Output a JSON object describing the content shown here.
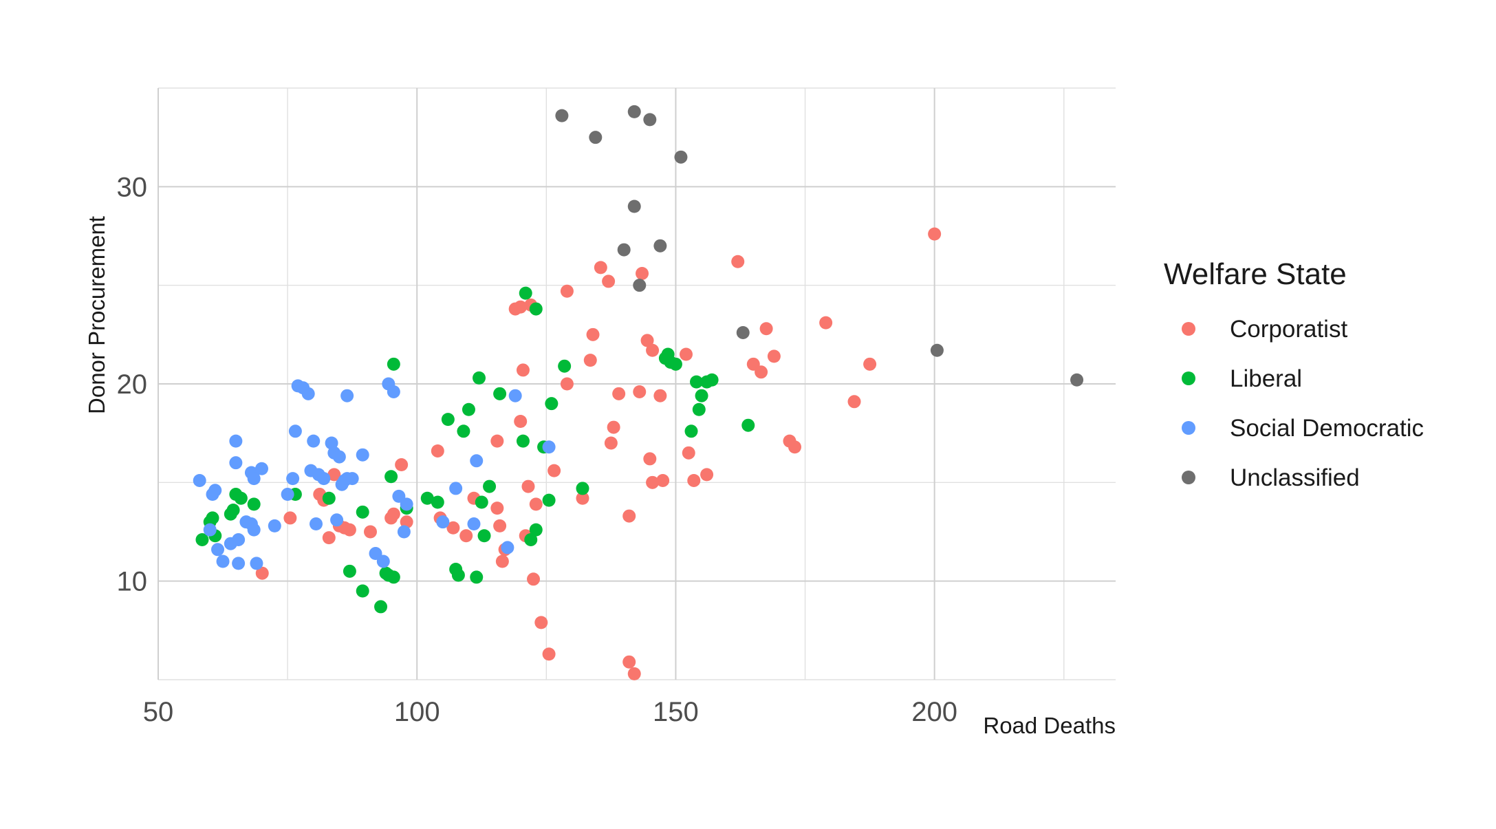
{
  "chart_data": {
    "type": "scatter",
    "title": "",
    "xlabel": "Road Deaths",
    "ylabel": "Donor Procurement",
    "xlim": [
      50,
      235
    ],
    "ylim": [
      5,
      35
    ],
    "x_ticks": [
      50,
      100,
      150,
      200
    ],
    "y_ticks": [
      10,
      20,
      30
    ],
    "grid": true,
    "legend": {
      "title": "Welfare State",
      "placement": "right"
    },
    "series": [
      {
        "name": "Corporatist",
        "color": "#F8766D",
        "points": [
          [
            70.1,
            10.4
          ],
          [
            75.5,
            13.2
          ],
          [
            81.2,
            14.4
          ],
          [
            82.0,
            14.1
          ],
          [
            83.0,
            12.2
          ],
          [
            84.0,
            15.4
          ],
          [
            85.0,
            12.8
          ],
          [
            86.0,
            12.7
          ],
          [
            87.0,
            12.6
          ],
          [
            91.0,
            12.5
          ],
          [
            95.0,
            13.2
          ],
          [
            95.5,
            13.4
          ],
          [
            97.0,
            15.9
          ],
          [
            98.0,
            13.0
          ],
          [
            104.0,
            16.6
          ],
          [
            104.5,
            13.2
          ],
          [
            107.0,
            12.7
          ],
          [
            109.5,
            12.3
          ],
          [
            111.0,
            14.2
          ],
          [
            115.5,
            17.1
          ],
          [
            115.5,
            13.7
          ],
          [
            116.0,
            12.8
          ],
          [
            116.5,
            11.0
          ],
          [
            117.0,
            11.6
          ],
          [
            119.0,
            23.8
          ],
          [
            120.0,
            23.9
          ],
          [
            120.0,
            18.1
          ],
          [
            120.5,
            20.7
          ],
          [
            121.0,
            12.3
          ],
          [
            121.5,
            14.8
          ],
          [
            122.0,
            24.0
          ],
          [
            122.5,
            10.1
          ],
          [
            123.0,
            13.9
          ],
          [
            124.0,
            7.9
          ],
          [
            125.5,
            6.3
          ],
          [
            126.5,
            15.6
          ],
          [
            129.0,
            24.7
          ],
          [
            129.0,
            20.0
          ],
          [
            132.0,
            14.2
          ],
          [
            133.5,
            21.2
          ],
          [
            134.0,
            22.5
          ],
          [
            135.5,
            25.9
          ],
          [
            137.0,
            25.2
          ],
          [
            137.5,
            17.0
          ],
          [
            138.0,
            17.8
          ],
          [
            139.0,
            19.5
          ],
          [
            141.0,
            5.9
          ],
          [
            141.0,
            13.3
          ],
          [
            142.0,
            5.3
          ],
          [
            143.0,
            19.6
          ],
          [
            143.5,
            25.6
          ],
          [
            144.5,
            22.2
          ],
          [
            145.0,
            16.2
          ],
          [
            145.5,
            15.0
          ],
          [
            145.5,
            21.7
          ],
          [
            147.0,
            19.4
          ],
          [
            147.5,
            15.1
          ],
          [
            152.0,
            21.5
          ],
          [
            152.5,
            16.5
          ],
          [
            153.5,
            15.1
          ],
          [
            156.0,
            15.4
          ],
          [
            162.0,
            26.2
          ],
          [
            165.0,
            21.0
          ],
          [
            166.5,
            20.6
          ],
          [
            167.5,
            22.8
          ],
          [
            169.0,
            21.4
          ],
          [
            172.0,
            17.1
          ],
          [
            173.0,
            16.8
          ],
          [
            179.0,
            23.1
          ],
          [
            184.5,
            19.1
          ],
          [
            187.5,
            21.0
          ],
          [
            200.0,
            27.6
          ]
        ]
      },
      {
        "name": "Liberal",
        "color": "#00BA38",
        "points": [
          [
            58.5,
            12.1
          ],
          [
            60.0,
            13.0
          ],
          [
            60.5,
            13.2
          ],
          [
            61.0,
            12.3
          ],
          [
            64.0,
            13.4
          ],
          [
            64.5,
            13.6
          ],
          [
            65.0,
            14.4
          ],
          [
            66.0,
            14.2
          ],
          [
            68.5,
            13.9
          ],
          [
            76.5,
            14.4
          ],
          [
            83.0,
            14.2
          ],
          [
            87.0,
            10.5
          ],
          [
            89.5,
            9.5
          ],
          [
            89.5,
            13.5
          ],
          [
            93.0,
            8.7
          ],
          [
            94.0,
            10.4
          ],
          [
            94.5,
            10.3
          ],
          [
            95.0,
            15.3
          ],
          [
            95.5,
            21.0
          ],
          [
            95.5,
            10.2
          ],
          [
            98.0,
            13.7
          ],
          [
            102.0,
            14.2
          ],
          [
            104.0,
            14.0
          ],
          [
            106.0,
            18.2
          ],
          [
            107.5,
            10.6
          ],
          [
            108.0,
            10.3
          ],
          [
            109.0,
            17.6
          ],
          [
            110.0,
            18.7
          ],
          [
            111.5,
            10.2
          ],
          [
            112.0,
            20.3
          ],
          [
            112.5,
            14.0
          ],
          [
            113.0,
            12.3
          ],
          [
            114.0,
            14.8
          ],
          [
            116.0,
            19.5
          ],
          [
            120.5,
            17.1
          ],
          [
            121.0,
            24.6
          ],
          [
            122.0,
            12.1
          ],
          [
            123.0,
            12.6
          ],
          [
            123.0,
            23.8
          ],
          [
            124.5,
            16.8
          ],
          [
            125.5,
            14.1
          ],
          [
            126.0,
            19.0
          ],
          [
            128.5,
            20.9
          ],
          [
            132.0,
            14.7
          ],
          [
            148.0,
            21.3
          ],
          [
            148.5,
            21.5
          ],
          [
            149.0,
            21.1
          ],
          [
            150.0,
            21.0
          ],
          [
            153.0,
            17.6
          ],
          [
            154.0,
            20.1
          ],
          [
            154.5,
            18.7
          ],
          [
            155.0,
            19.4
          ],
          [
            156.0,
            20.1
          ],
          [
            157.0,
            20.2
          ],
          [
            164.0,
            17.9
          ]
        ]
      },
      {
        "name": "Social Democratic",
        "color": "#619CFF",
        "points": [
          [
            58.0,
            15.1
          ],
          [
            60.0,
            12.6
          ],
          [
            60.5,
            14.4
          ],
          [
            61.0,
            14.6
          ],
          [
            61.5,
            11.6
          ],
          [
            62.5,
            11.0
          ],
          [
            64.0,
            11.9
          ],
          [
            65.0,
            17.1
          ],
          [
            65.0,
            16.0
          ],
          [
            65.5,
            10.9
          ],
          [
            65.5,
            12.1
          ],
          [
            67.0,
            13.0
          ],
          [
            68.0,
            12.9
          ],
          [
            68.0,
            15.5
          ],
          [
            68.5,
            12.6
          ],
          [
            68.5,
            15.2
          ],
          [
            69.0,
            10.9
          ],
          [
            70.0,
            15.7
          ],
          [
            72.5,
            12.8
          ],
          [
            75.0,
            14.4
          ],
          [
            76.0,
            15.2
          ],
          [
            76.5,
            17.6
          ],
          [
            77.0,
            19.9
          ],
          [
            78.0,
            19.8
          ],
          [
            79.0,
            19.5
          ],
          [
            79.5,
            15.6
          ],
          [
            80.0,
            17.1
          ],
          [
            80.5,
            12.9
          ],
          [
            81.0,
            15.4
          ],
          [
            82.0,
            15.2
          ],
          [
            83.5,
            17.0
          ],
          [
            84.0,
            16.5
          ],
          [
            84.5,
            13.1
          ],
          [
            85.0,
            16.3
          ],
          [
            85.5,
            14.9
          ],
          [
            86.0,
            15.1
          ],
          [
            86.5,
            15.2
          ],
          [
            86.5,
            19.4
          ],
          [
            87.5,
            15.2
          ],
          [
            89.5,
            16.4
          ],
          [
            92.0,
            11.4
          ],
          [
            93.5,
            11.0
          ],
          [
            94.5,
            20.0
          ],
          [
            95.5,
            19.6
          ],
          [
            96.5,
            14.3
          ],
          [
            97.5,
            12.5
          ],
          [
            98.0,
            13.9
          ],
          [
            105.0,
            13.0
          ],
          [
            107.5,
            14.7
          ],
          [
            111.0,
            12.9
          ],
          [
            111.5,
            16.1
          ],
          [
            117.5,
            11.7
          ],
          [
            119.0,
            19.4
          ],
          [
            125.5,
            16.8
          ]
        ]
      },
      {
        "name": "Unclassified",
        "color": "#6E6E6E",
        "points": [
          [
            128.0,
            33.6
          ],
          [
            134.5,
            32.5
          ],
          [
            140.0,
            26.8
          ],
          [
            142.0,
            29.0
          ],
          [
            142.0,
            33.8
          ],
          [
            143.0,
            25.0
          ],
          [
            145.0,
            33.4
          ],
          [
            147.0,
            27.0
          ],
          [
            151.0,
            31.5
          ],
          [
            163.0,
            22.6
          ],
          [
            200.5,
            21.7
          ],
          [
            227.5,
            20.2
          ]
        ]
      }
    ]
  }
}
